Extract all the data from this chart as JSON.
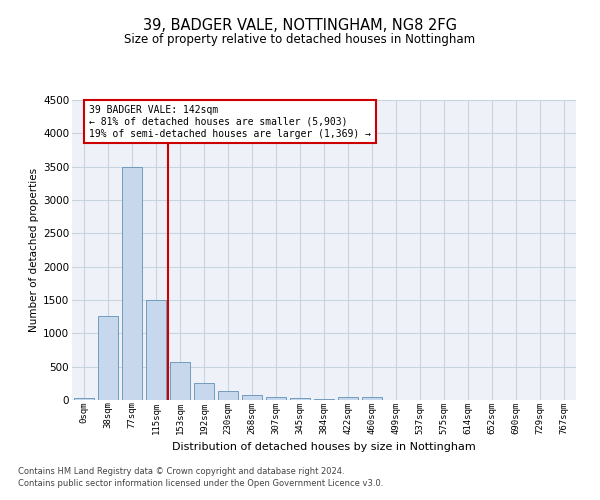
{
  "title": "39, BADGER VALE, NOTTINGHAM, NG8 2FG",
  "subtitle": "Size of property relative to detached houses in Nottingham",
  "xlabel": "Distribution of detached houses by size in Nottingham",
  "ylabel": "Number of detached properties",
  "bar_color": "#c8d8ec",
  "bar_edge_color": "#6090b8",
  "categories": [
    "0sqm",
    "38sqm",
    "77sqm",
    "115sqm",
    "153sqm",
    "192sqm",
    "230sqm",
    "268sqm",
    "307sqm",
    "345sqm",
    "384sqm",
    "422sqm",
    "460sqm",
    "499sqm",
    "537sqm",
    "575sqm",
    "614sqm",
    "652sqm",
    "690sqm",
    "729sqm",
    "767sqm"
  ],
  "values": [
    30,
    1260,
    3500,
    1500,
    575,
    250,
    140,
    80,
    50,
    25,
    20,
    50,
    40,
    0,
    0,
    0,
    0,
    0,
    0,
    0,
    0
  ],
  "ylim": [
    0,
    4500
  ],
  "yticks": [
    0,
    500,
    1000,
    1500,
    2000,
    2500,
    3000,
    3500,
    4000,
    4500
  ],
  "vline_color": "#cc0000",
  "grid_color": "#c8d4e0",
  "bg_color": "#eef2f8",
  "property_line_label": "39 BADGER VALE: 142sqm",
  "annotation_line1": "← 81% of detached houses are smaller (5,903)",
  "annotation_line2": "19% of semi-detached houses are larger (1,369) →",
  "footer1": "Contains HM Land Registry data © Crown copyright and database right 2024.",
  "footer2": "Contains public sector information licensed under the Open Government Licence v3.0."
}
